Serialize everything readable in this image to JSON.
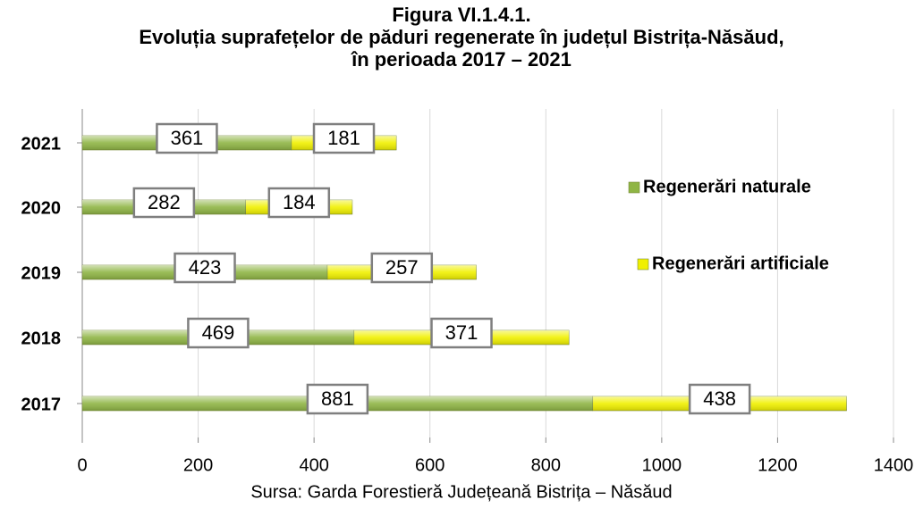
{
  "chart_data": {
    "type": "stacked_barh",
    "title": [
      "Figura VI.1.4.1.",
      "Evoluția suprafețelor de păduri regenerate în județul Bistrița-Năsăud,",
      "în perioada 2017 – 2021"
    ],
    "source": "Sursa: Garda Forestieră Județeană Bistrița – Năsăud",
    "categories": [
      "2021",
      "2020",
      "2019",
      "2018",
      "2017"
    ],
    "series": [
      {
        "name": "Regenerări naturale",
        "color": "#8fb545",
        "values": [
          361,
          282,
          423,
          469,
          881
        ]
      },
      {
        "name": "Regenerări artificiale",
        "color": "#f0f000",
        "values": [
          181,
          184,
          257,
          371,
          438
        ]
      }
    ],
    "xlim": [
      0,
      1400
    ],
    "xticks": [
      0,
      200,
      400,
      600,
      800,
      1000,
      1200,
      1400
    ],
    "grid": true
  }
}
